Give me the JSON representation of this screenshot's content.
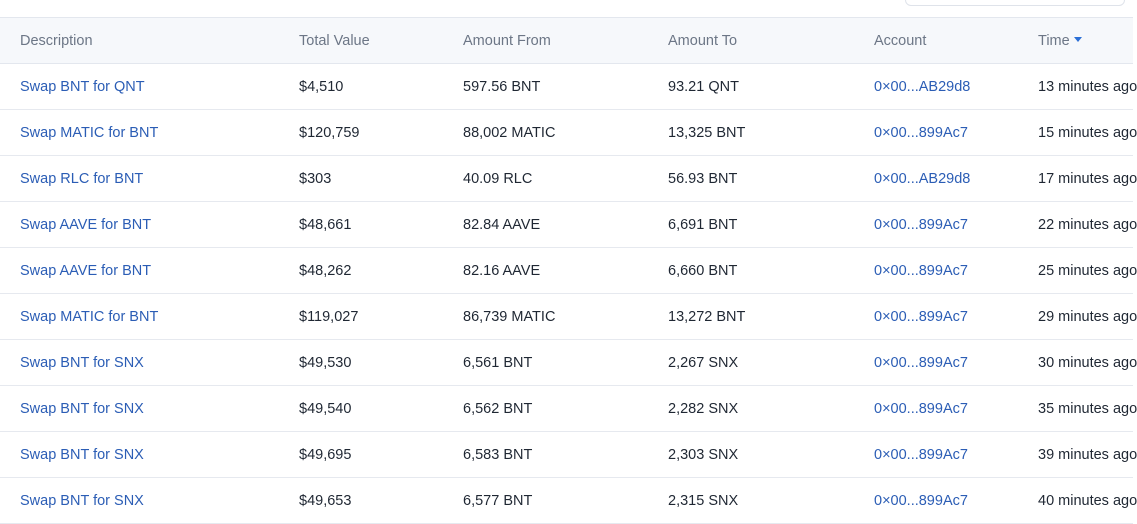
{
  "columns": {
    "description": "Description",
    "total_value": "Total Value",
    "amount_from": "Amount From",
    "amount_to": "Amount To",
    "account": "Account",
    "time": "Time"
  },
  "sort": {
    "column": "time",
    "direction": "descending",
    "indicator": "caret-down-icon"
  },
  "colors": {
    "link": "#2b5db5",
    "sort_caret": "#2b6fd6",
    "header_bg": "#f6f8fb"
  },
  "rows": [
    {
      "description": "Swap BNT for QNT",
      "total_value": "$4,510",
      "amount_from": "597.56 BNT",
      "amount_to": "93.21 QNT",
      "account": "0×00...AB29d8",
      "time": "13 minutes ago"
    },
    {
      "description": "Swap MATIC for BNT",
      "total_value": "$120,759",
      "amount_from": "88,002 MATIC",
      "amount_to": "13,325 BNT",
      "account": "0×00...899Ac7",
      "time": "15 minutes ago"
    },
    {
      "description": "Swap RLC for BNT",
      "total_value": "$303",
      "amount_from": "40.09 RLC",
      "amount_to": "56.93 BNT",
      "account": "0×00...AB29d8",
      "time": "17 minutes ago"
    },
    {
      "description": "Swap AAVE for BNT",
      "total_value": "$48,661",
      "amount_from": "82.84 AAVE",
      "amount_to": "6,691 BNT",
      "account": "0×00...899Ac7",
      "time": "22 minutes ago"
    },
    {
      "description": "Swap AAVE for BNT",
      "total_value": "$48,262",
      "amount_from": "82.16 AAVE",
      "amount_to": "6,660 BNT",
      "account": "0×00...899Ac7",
      "time": "25 minutes ago"
    },
    {
      "description": "Swap MATIC for BNT",
      "total_value": "$119,027",
      "amount_from": "86,739 MATIC",
      "amount_to": "13,272 BNT",
      "account": "0×00...899Ac7",
      "time": "29 minutes ago"
    },
    {
      "description": "Swap BNT for SNX",
      "total_value": "$49,530",
      "amount_from": "6,561 BNT",
      "amount_to": "2,267 SNX",
      "account": "0×00...899Ac7",
      "time": "30 minutes ago"
    },
    {
      "description": "Swap BNT for SNX",
      "total_value": "$49,540",
      "amount_from": "6,562 BNT",
      "amount_to": "2,282 SNX",
      "account": "0×00...899Ac7",
      "time": "35 minutes ago"
    },
    {
      "description": "Swap BNT for SNX",
      "total_value": "$49,695",
      "amount_from": "6,583 BNT",
      "amount_to": "2,303 SNX",
      "account": "0×00...899Ac7",
      "time": "39 minutes ago"
    },
    {
      "description": "Swap BNT for SNX",
      "total_value": "$49,653",
      "amount_from": "6,577 BNT",
      "amount_to": "2,315 SNX",
      "account": "0×00...899Ac7",
      "time": "40 minutes ago"
    }
  ]
}
